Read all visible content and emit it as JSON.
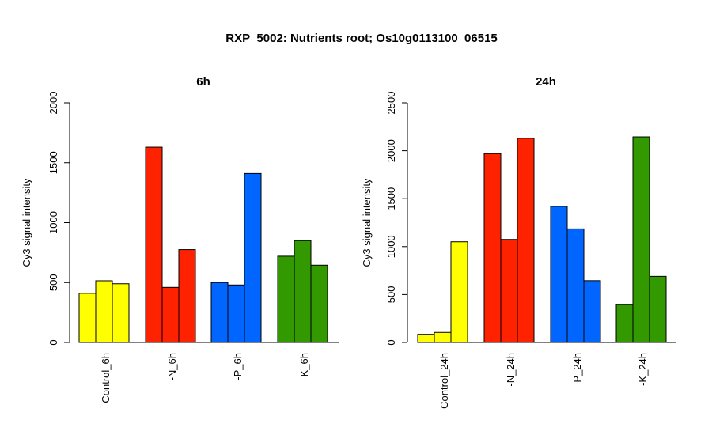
{
  "title": "RXP_5002: Nutrients root; Os10g0113100_06515",
  "chart_data": [
    {
      "type": "bar",
      "title": "6h",
      "ylabel": "Cy3 signal intensity",
      "ylim": [
        0,
        2000
      ],
      "yticks": [
        0,
        500,
        1000,
        1500,
        2000
      ],
      "groups": [
        {
          "label": "Control_6h",
          "color": "#FFFF00",
          "values": [
            410,
            515,
            490
          ]
        },
        {
          "label": "-N_6h",
          "color": "#FF2200",
          "values": [
            1630,
            460,
            775
          ]
        },
        {
          "label": "-P_6h",
          "color": "#0066FF",
          "values": [
            500,
            480,
            1410
          ]
        },
        {
          "label": "-K_6h",
          "color": "#339900",
          "values": [
            720,
            850,
            645
          ]
        }
      ]
    },
    {
      "type": "bar",
      "title": "24h",
      "ylabel": "Cy3 signal intensity",
      "ylim": [
        0,
        2500
      ],
      "yticks": [
        0,
        500,
        1000,
        1500,
        2000,
        2500
      ],
      "groups": [
        {
          "label": "Control_24h",
          "color": "#FFFF00",
          "values": [
            85,
            105,
            1050
          ]
        },
        {
          "label": "-N_24h",
          "color": "#FF2200",
          "values": [
            1970,
            1075,
            2130
          ]
        },
        {
          "label": "-P_24h",
          "color": "#0066FF",
          "values": [
            1420,
            1185,
            645
          ]
        },
        {
          "label": "-K_24h",
          "color": "#339900",
          "values": [
            395,
            2145,
            690
          ]
        }
      ]
    }
  ]
}
